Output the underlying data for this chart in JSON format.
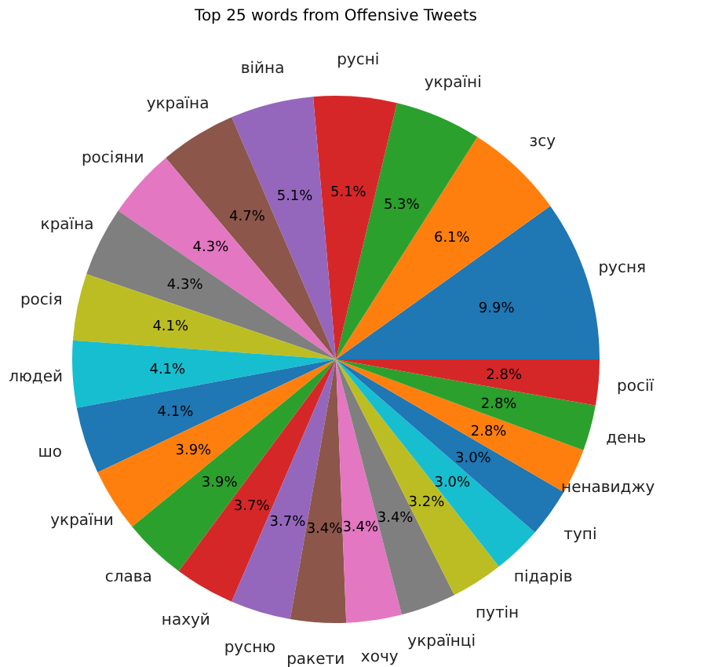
{
  "chart_data": {
    "type": "pie",
    "title": "Top 25 words from Offensive Tweets",
    "categories": [
      "русня",
      "зсу",
      "україні",
      "русні",
      "війна",
      "україна",
      "росіяни",
      "країна",
      "росія",
      "людей",
      "шо",
      "україни",
      "слава",
      "нахуй",
      "русню",
      "ракети",
      "хочу",
      "українці",
      "путін",
      "підарів",
      "тупі",
      "ненавиджу",
      "день",
      "росії"
    ],
    "values": [
      9.9,
      6.1,
      5.3,
      5.1,
      5.1,
      4.7,
      4.3,
      4.3,
      4.1,
      4.1,
      4.1,
      3.9,
      3.9,
      3.7,
      3.7,
      3.4,
      3.4,
      3.4,
      3.2,
      3.0,
      3.0,
      2.8,
      2.8,
      2.8
    ],
    "value_labels": [
      "9.9%",
      "6.1%",
      "5.3%",
      "5.1%",
      "5.1%",
      "4.7%",
      "4.3%",
      "4.3%",
      "4.1%",
      "4.1%",
      "4.1%",
      "3.9%",
      "3.9%",
      "3.7%",
      "3.7%",
      "3.4%",
      "3.4%",
      "3.4%",
      "3.2%",
      "3.0%",
      "3.0%",
      "2.8%",
      "2.8%",
      "2.8%"
    ],
    "colors": [
      "#1f77b4",
      "#ff7f0e",
      "#2ca02c",
      "#d62728",
      "#9467bd",
      "#8c564b",
      "#e377c2",
      "#7f7f7f",
      "#bcbd22",
      "#17becf",
      "#1f77b4",
      "#ff7f0e",
      "#2ca02c",
      "#d62728",
      "#9467bd",
      "#8c564b",
      "#e377c2",
      "#7f7f7f",
      "#bcbd22",
      "#17becf",
      "#1f77b4",
      "#ff7f0e",
      "#2ca02c",
      "#d62728"
    ],
    "legend": false
  }
}
